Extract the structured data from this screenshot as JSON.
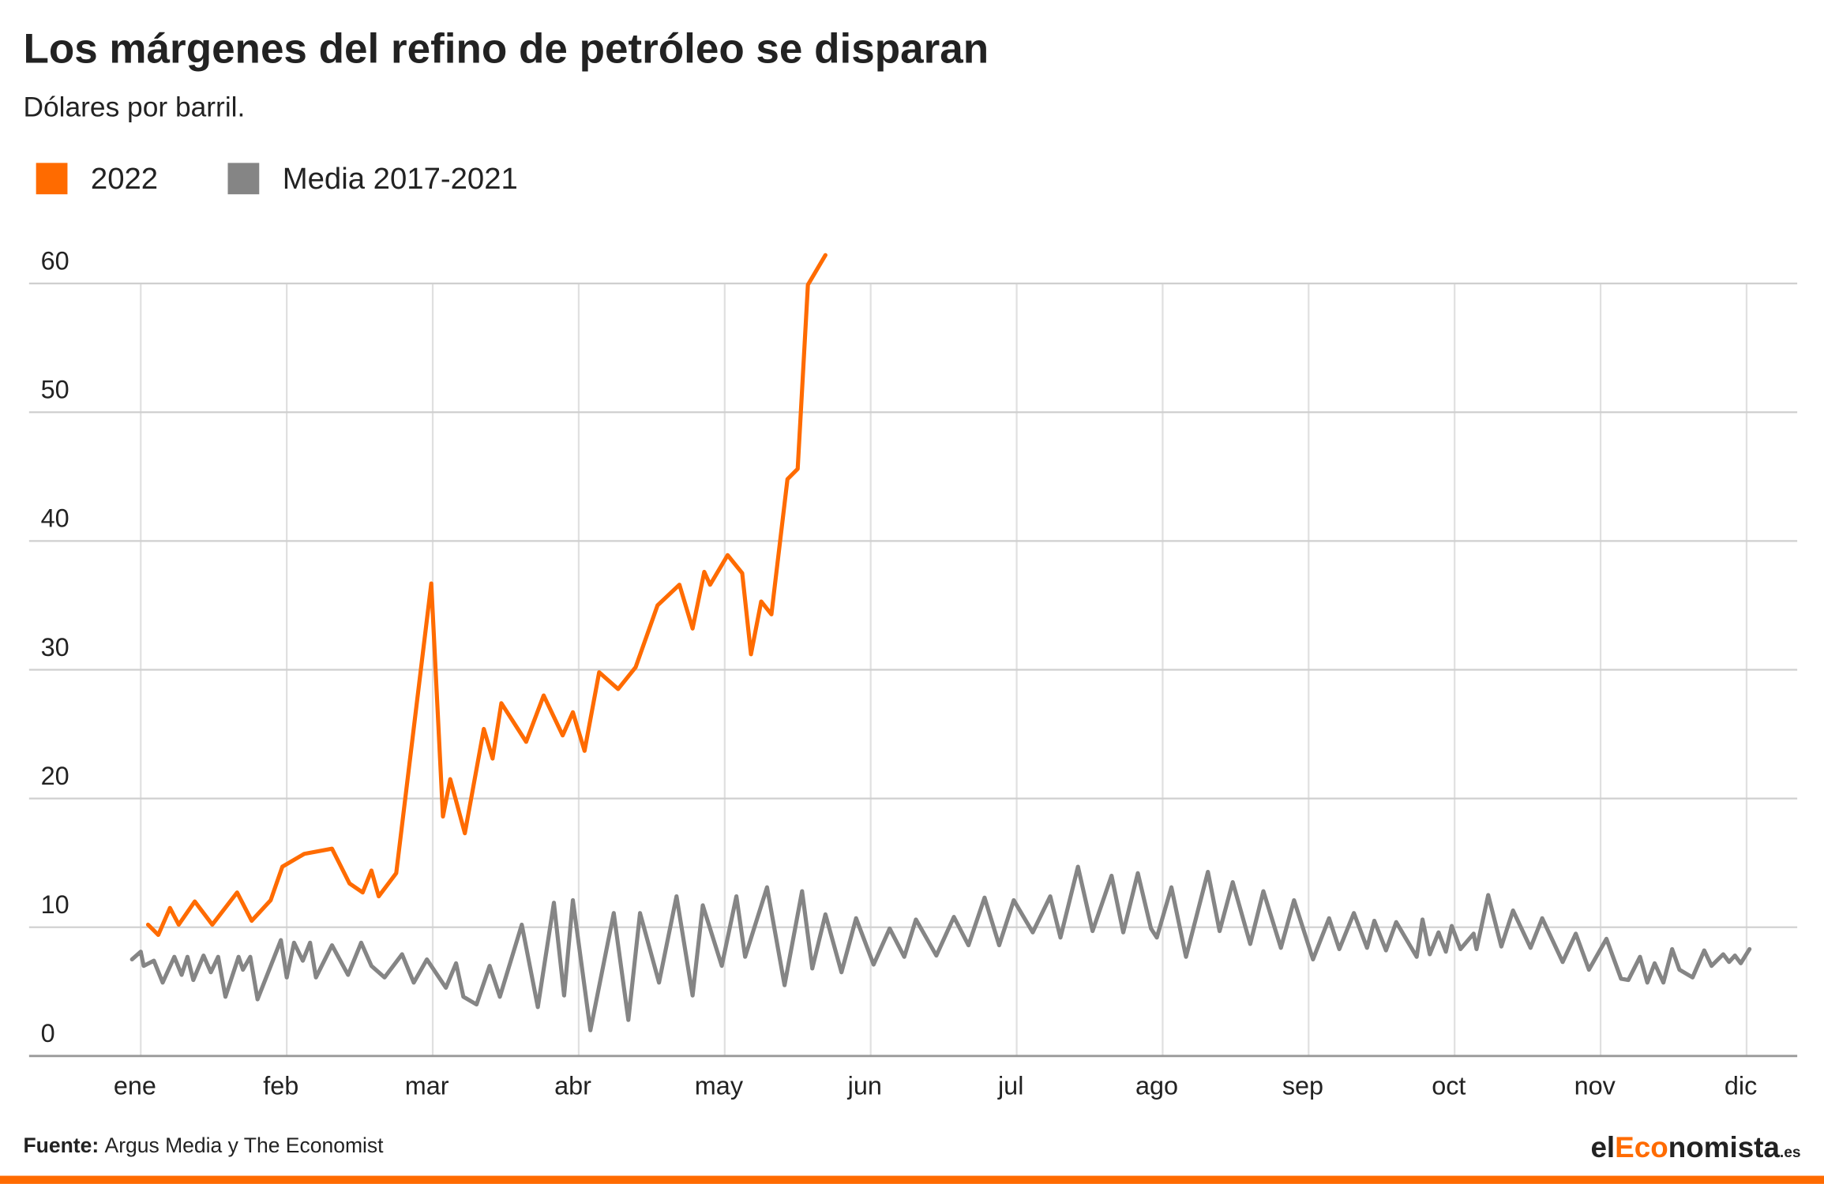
{
  "chart_data": {
    "type": "line",
    "title": "Los márgenes del refino de petróleo se disparan",
    "subtitle": "Dólares por barril.",
    "xlim": [
      -0.765,
      11.347
    ],
    "xticks": [
      {
        "value": 0,
        "label": "ene"
      },
      {
        "value": 1,
        "label": "feb"
      },
      {
        "value": 2,
        "label": "mar"
      },
      {
        "value": 3,
        "label": "abr"
      },
      {
        "value": 4,
        "label": "may"
      },
      {
        "value": 5,
        "label": "jun"
      },
      {
        "value": 6,
        "label": "jul"
      },
      {
        "value": 7,
        "label": "ago"
      },
      {
        "value": 8,
        "label": "sep"
      },
      {
        "value": 9,
        "label": "oct"
      },
      {
        "value": 10,
        "label": "nov"
      },
      {
        "value": 11,
        "label": "dic"
      }
    ],
    "ylim": [
      0,
      62.5
    ],
    "yticks": [
      0,
      10,
      20,
      30,
      40,
      50,
      60
    ],
    "grid": true,
    "legend": "top-left",
    "series": [
      {
        "name": "2022",
        "color": "#ff6b00",
        "x": [
          0.05,
          0.12,
          0.2,
          0.26,
          0.37,
          0.49,
          0.66,
          0.76,
          0.89,
          0.97,
          1.12,
          1.31,
          1.43,
          1.52,
          1.58,
          1.63,
          1.75,
          1.99,
          2.07,
          2.12,
          2.22,
          2.35,
          2.41,
          2.47,
          2.64,
          2.76,
          2.89,
          2.96,
          3.04,
          3.14,
          3.27,
          3.39,
          3.54,
          3.69,
          3.78,
          3.86,
          3.9,
          4.02,
          4.12,
          4.18,
          4.25,
          4.32,
          4.43,
          4.5,
          4.57,
          4.69
        ],
        "values": [
          10.2,
          9.4,
          11.5,
          10.2,
          12.0,
          10.2,
          12.7,
          10.5,
          12.1,
          14.7,
          15.7,
          16.1,
          13.4,
          12.7,
          14.4,
          12.4,
          14.2,
          36.7,
          18.6,
          21.5,
          17.3,
          25.4,
          23.1,
          27.4,
          24.4,
          28.0,
          24.9,
          26.7,
          23.7,
          29.8,
          28.5,
          30.2,
          35.0,
          36.6,
          33.2,
          37.6,
          36.6,
          38.9,
          37.5,
          31.2,
          35.3,
          34.3,
          44.8,
          45.6,
          59.9,
          62.2
        ]
      },
      {
        "name": "Media 2017-2021",
        "color": "#858585",
        "x": [
          -0.06,
          0,
          0.02,
          0.09,
          0.15,
          0.23,
          0.28,
          0.32,
          0.36,
          0.43,
          0.48,
          0.53,
          0.58,
          0.67,
          0.7,
          0.75,
          0.8,
          0.96,
          1.0,
          1.05,
          1.11,
          1.16,
          1.2,
          1.31,
          1.42,
          1.51,
          1.58,
          1.67,
          1.79,
          1.87,
          1.96,
          2.09,
          2.16,
          2.21,
          2.3,
          2.39,
          2.46,
          2.61,
          2.72,
          2.83,
          2.9,
          2.96,
          3.08,
          3.24,
          3.34,
          3.42,
          3.55,
          3.67,
          3.78,
          3.85,
          3.98,
          4.08,
          4.14,
          4.29,
          4.41,
          4.53,
          4.6,
          4.69,
          4.8,
          4.9,
          5.02,
          5.13,
          5.23,
          5.31,
          5.45,
          5.57,
          5.67,
          5.78,
          5.88,
          5.98,
          6.11,
          6.23,
          6.3,
          6.42,
          6.52,
          6.65,
          6.73,
          6.83,
          6.92,
          6.96,
          7.06,
          7.16,
          7.31,
          7.39,
          7.48,
          7.6,
          7.69,
          7.81,
          7.9,
          8.03,
          8.14,
          8.21,
          8.31,
          8.4,
          8.45,
          8.53,
          8.6,
          8.74,
          8.78,
          8.83,
          8.89,
          8.94,
          8.98,
          9.04,
          9.13,
          9.15,
          9.23,
          9.32,
          9.4,
          9.52,
          9.6,
          9.74,
          9.83,
          9.92,
          10.04,
          10.14,
          10.19,
          10.27,
          10.32,
          10.37,
          10.43,
          10.49,
          10.54,
          10.63,
          10.71,
          10.76,
          10.84,
          10.88,
          10.92,
          10.96,
          11.02
        ],
        "values": [
          7.5,
          8.1,
          7.0,
          7.4,
          5.7,
          7.7,
          6.3,
          7.7,
          5.9,
          7.8,
          6.5,
          7.7,
          4.6,
          7.7,
          6.7,
          7.7,
          4.4,
          9.0,
          6.1,
          8.8,
          7.4,
          8.8,
          6.1,
          8.6,
          6.3,
          8.8,
          7.0,
          6.1,
          7.9,
          5.7,
          7.5,
          5.3,
          7.2,
          4.6,
          4.0,
          7.0,
          4.6,
          10.2,
          3.8,
          11.9,
          4.7,
          12.1,
          2.0,
          11.1,
          2.8,
          11.1,
          5.7,
          12.4,
          4.7,
          11.7,
          7.0,
          12.4,
          7.7,
          13.1,
          5.5,
          12.8,
          6.8,
          11.0,
          6.5,
          10.7,
          7.1,
          9.9,
          7.7,
          10.6,
          7.8,
          10.8,
          8.6,
          12.3,
          8.6,
          12.1,
          9.6,
          12.4,
          9.2,
          14.7,
          9.7,
          14.0,
          9.6,
          14.2,
          9.9,
          9.2,
          13.1,
          7.7,
          14.3,
          9.7,
          13.5,
          8.7,
          12.8,
          8.4,
          12.1,
          7.5,
          10.7,
          8.3,
          11.1,
          8.4,
          10.5,
          8.2,
          10.4,
          7.7,
          10.6,
          7.9,
          9.6,
          8.1,
          10.1,
          8.3,
          9.5,
          8.3,
          12.5,
          8.5,
          11.3,
          8.4,
          10.7,
          7.3,
          9.5,
          6.7,
          9.1,
          6.0,
          5.9,
          7.7,
          5.7,
          7.2,
          5.7,
          8.3,
          6.7,
          6.1,
          8.2,
          7.0,
          7.9,
          7.3,
          7.8,
          7.2,
          8.3
        ]
      }
    ],
    "source_label": "Fuente:",
    "source": "Argus Media y The Economist",
    "logo": [
      "el",
      "Eco",
      "nomista",
      ".es"
    ]
  }
}
